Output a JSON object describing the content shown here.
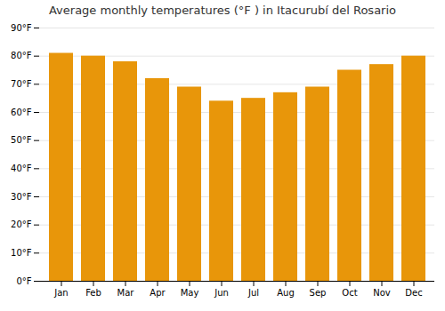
{
  "chart_data": {
    "type": "bar",
    "title": "Average monthly temperatures (°F ) in Itacurubí del Rosario",
    "categories": [
      "Jan",
      "Feb",
      "Mar",
      "Apr",
      "May",
      "Jun",
      "Jul",
      "Aug",
      "Sep",
      "Oct",
      "Nov",
      "Dec"
    ],
    "values": [
      81,
      80,
      78,
      72,
      69,
      64,
      65,
      67,
      69,
      75,
      77,
      80
    ],
    "color": "#E8960A",
    "ylim": [
      0,
      90
    ],
    "yticks": [
      {
        "value": 0,
        "label": "0°F"
      },
      {
        "value": 10,
        "label": "10°F"
      },
      {
        "value": 20,
        "label": "20°F"
      },
      {
        "value": 30,
        "label": "30°F"
      },
      {
        "value": 40,
        "label": "40°F"
      },
      {
        "value": 50,
        "label": "50°F"
      },
      {
        "value": 60,
        "label": "60°F"
      },
      {
        "value": 70,
        "label": "70°F"
      },
      {
        "value": 80,
        "label": "80°F"
      },
      {
        "value": 90,
        "label": "90°F"
      }
    ],
    "grid": true
  }
}
